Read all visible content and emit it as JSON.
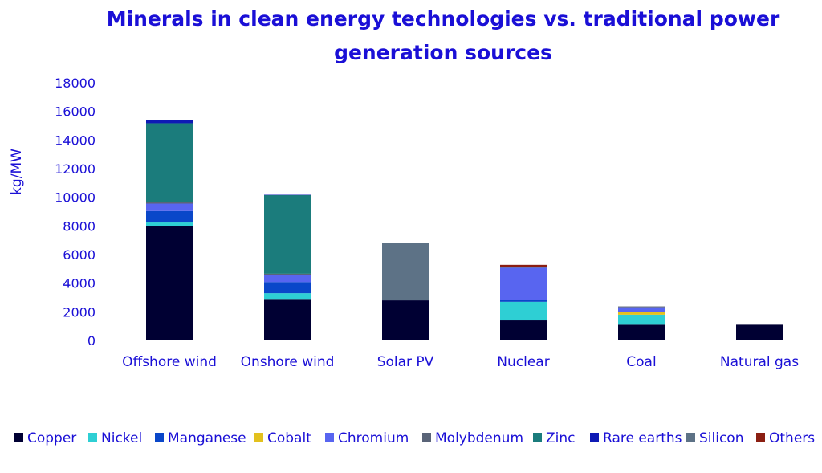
{
  "chart_data": {
    "type": "bar",
    "stacked": true,
    "title": "Minerals in clean energy technologies vs. traditional power generation sources",
    "title_lines": [
      "Minerals in clean energy technologies vs. traditional power",
      "generation sources"
    ],
    "ylabel": "kg/MW",
    "xlabel": "",
    "ylim": [
      0,
      18000
    ],
    "yticks": [
      0,
      2000,
      4000,
      6000,
      8000,
      10000,
      12000,
      14000,
      16000,
      18000
    ],
    "grid": false,
    "legend_position": "bottom",
    "categories": [
      "Offshore wind",
      "Onshore wind",
      "Solar PV",
      "Nuclear",
      "Coal",
      "Natural gas"
    ],
    "series": [
      {
        "name": "Copper",
        "color": "#000033",
        "values": [
          8000,
          2900,
          2800,
          1400,
          1100,
          1100
        ]
      },
      {
        "name": "Nickel",
        "color": "#2ecfd4",
        "values": [
          240,
          400,
          0,
          1300,
          700,
          0
        ]
      },
      {
        "name": "Manganese",
        "color": "#0a47c9",
        "values": [
          800,
          780,
          0,
          130,
          0,
          0
        ]
      },
      {
        "name": "Cobalt",
        "color": "#e3c11e",
        "values": [
          0,
          0,
          0,
          0,
          200,
          0
        ]
      },
      {
        "name": "Chromium",
        "color": "#5865f0",
        "values": [
          520,
          470,
          0,
          2250,
          320,
          0
        ]
      },
      {
        "name": "Molybdenum",
        "color": "#5a6478",
        "values": [
          110,
          110,
          0,
          70,
          60,
          0
        ]
      },
      {
        "name": "Zinc",
        "color": "#1b7c7c",
        "values": [
          5500,
          5500,
          0,
          0,
          0,
          0
        ]
      },
      {
        "name": "Rare earths",
        "color": "#0e1ab5",
        "values": [
          240,
          15,
          0,
          0,
          0,
          0
        ]
      },
      {
        "name": "Silicon",
        "color": "#5d7286",
        "values": [
          0,
          0,
          4000,
          0,
          0,
          0
        ]
      },
      {
        "name": "Others",
        "color": "#8b1f12",
        "values": [
          0,
          0,
          0,
          130,
          0,
          0
        ]
      }
    ]
  }
}
